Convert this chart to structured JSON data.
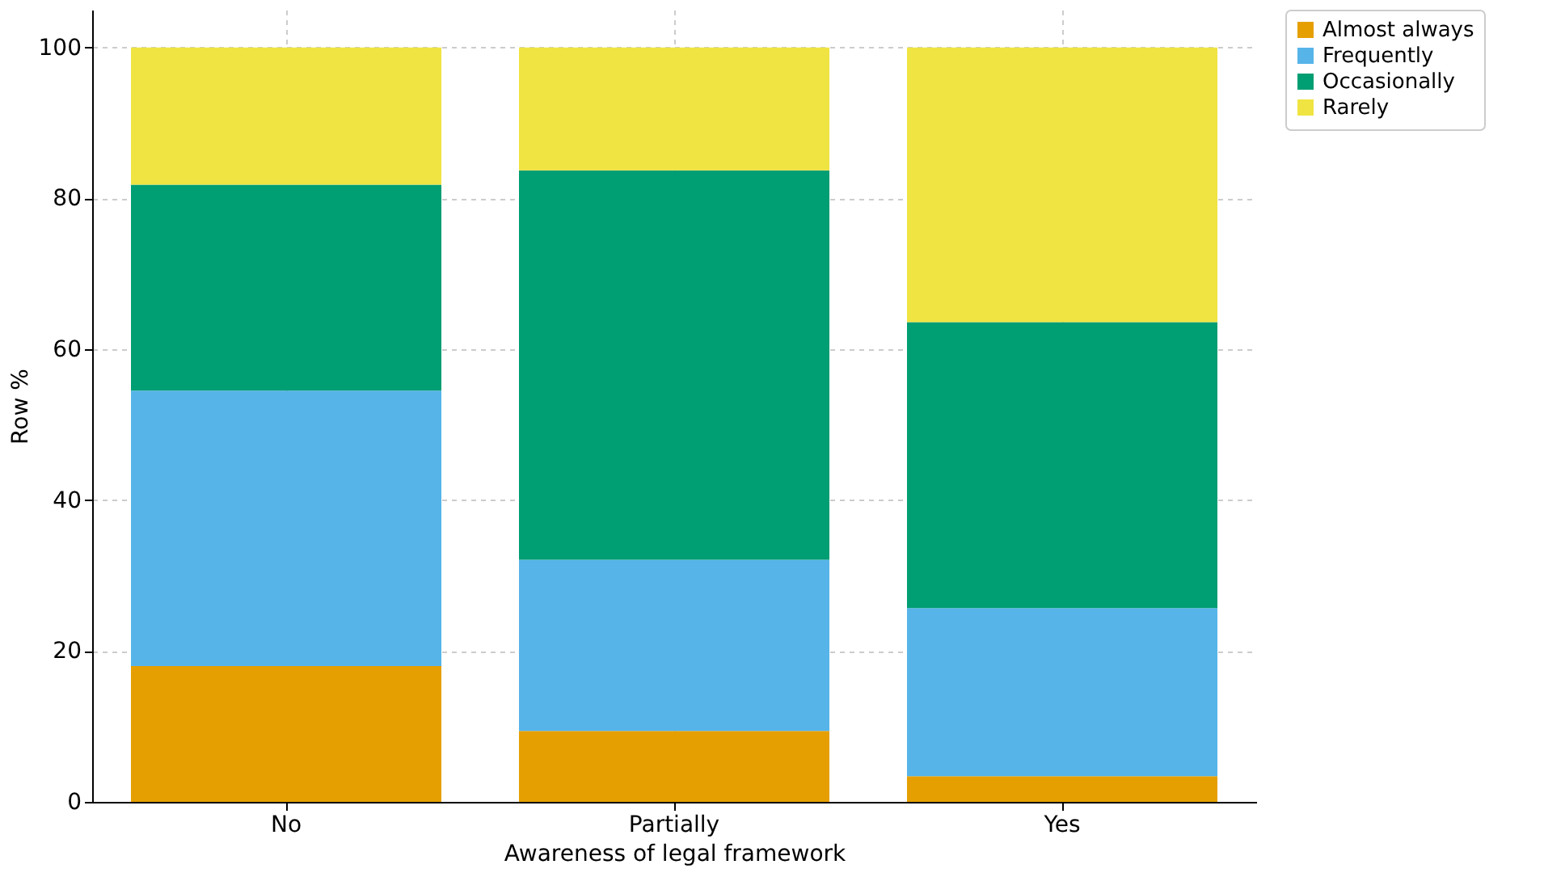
{
  "chart_data": {
    "type": "bar",
    "stacked": true,
    "xlabel": "Awareness of legal framework",
    "ylabel": "Row %",
    "categories": [
      "No",
      "Partially",
      "Yes"
    ],
    "series": [
      {
        "name": "Almost always",
        "color": "#e69f00",
        "values": [
          18.0,
          9.4,
          3.4
        ]
      },
      {
        "name": "Frequently",
        "color": "#56b4e9",
        "values": [
          36.5,
          22.7,
          22.3
        ]
      },
      {
        "name": "Occasionally",
        "color": "#009e73",
        "values": [
          27.3,
          51.6,
          37.9
        ]
      },
      {
        "name": "Rarely",
        "color": "#f0e442",
        "values": [
          18.2,
          16.3,
          36.4
        ]
      }
    ],
    "ylim": [
      0,
      105
    ],
    "yticks": [
      0,
      20,
      40,
      60,
      80,
      100
    ],
    "grid": true,
    "legend": "top right"
  }
}
